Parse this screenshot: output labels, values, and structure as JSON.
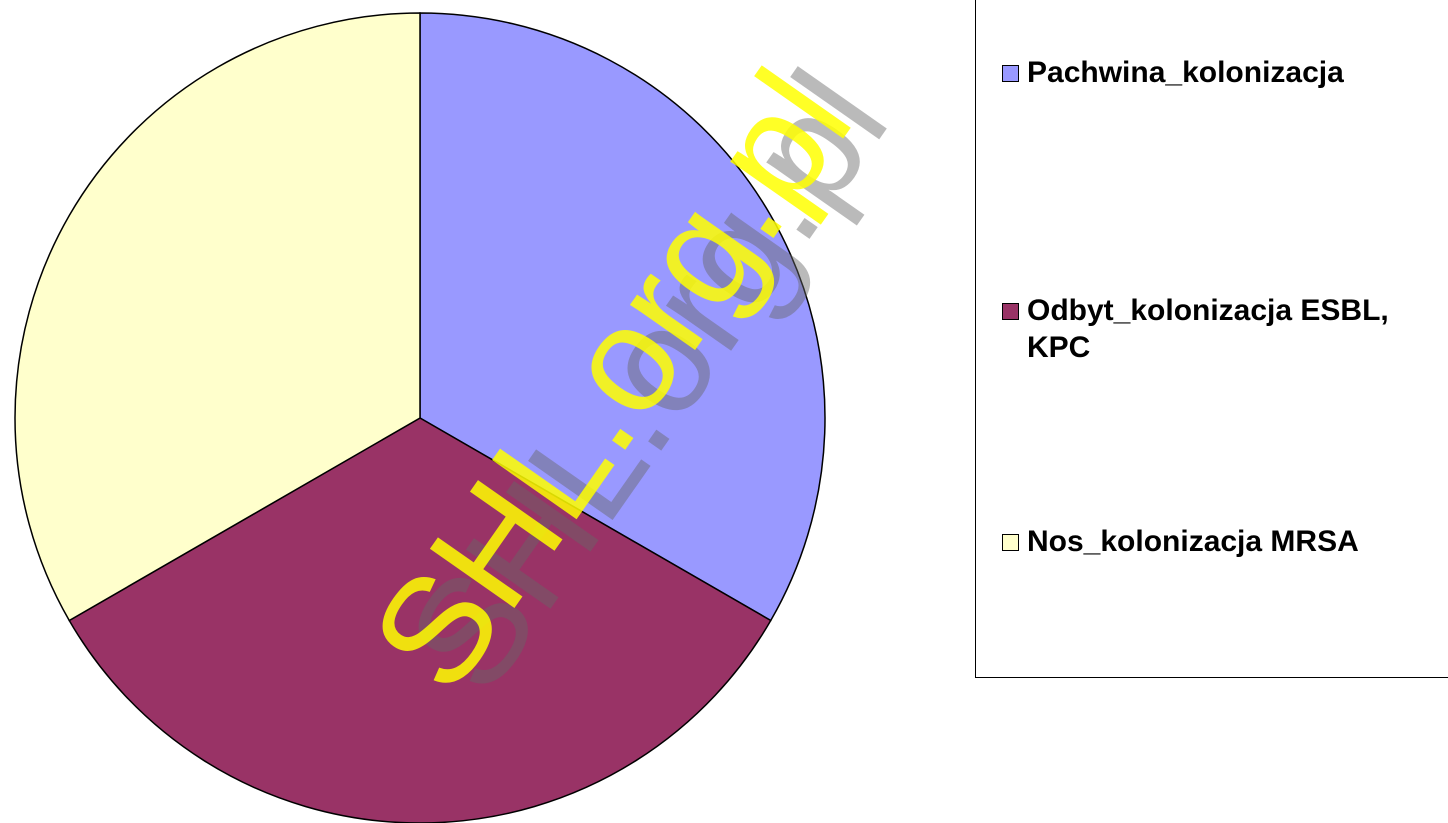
{
  "chart_data": {
    "type": "pie",
    "categories": [
      "Pachwina_kolonizacja",
      "Odbyt_kolonizacja ESBL, KPC",
      "Nos_kolonizacja MRSA"
    ],
    "values": [
      33.3,
      33.3,
      33.3
    ],
    "colors": [
      "#9999ff",
      "#993366",
      "#ffffcc"
    ],
    "legend": "right",
    "watermark": "SHL.org.pl"
  }
}
